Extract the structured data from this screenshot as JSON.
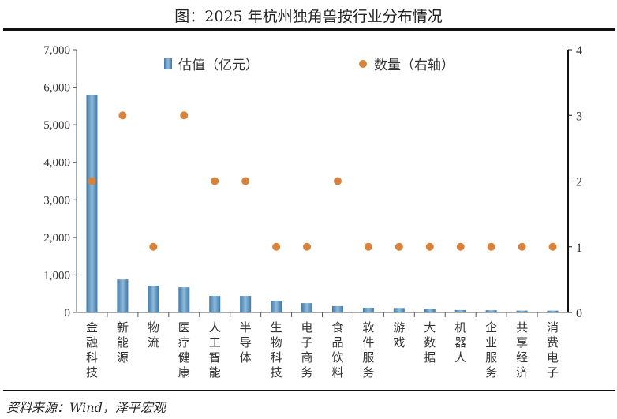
{
  "chart_data": {
    "type": "bar",
    "title": "图：2025 年杭州独角兽按行业分布情况",
    "categories": [
      "金融科技",
      "新能源",
      "物流",
      "医疗健康",
      "人工智能",
      "半导体",
      "生物科技",
      "电子商务",
      "食品饮料",
      "软件服务",
      "游戏",
      "大数据",
      "机器人",
      "企业服务",
      "共享经济",
      "消费电子"
    ],
    "series": [
      {
        "name": "估值（亿元）",
        "type": "bar",
        "axis": "left",
        "color": "#5b93bf",
        "values": [
          5800,
          880,
          715,
          670,
          440,
          440,
          315,
          250,
          170,
          125,
          120,
          100,
          65,
          60,
          50,
          50
        ]
      },
      {
        "name": "数量（右轴）",
        "type": "scatter",
        "axis": "right",
        "color": "#d9823b",
        "values": [
          2,
          3,
          1,
          3,
          2,
          2,
          1,
          1,
          2,
          1,
          1,
          1,
          1,
          1,
          1,
          1
        ]
      }
    ],
    "ylim": [
      0,
      7000
    ],
    "y_ticks": [
      "0",
      "1,000",
      "2,000",
      "3,000",
      "4,000",
      "5,000",
      "6,000",
      "7,000"
    ],
    "y2lim": [
      0,
      4
    ],
    "y2_ticks": [
      "0",
      "1",
      "2",
      "3",
      "4"
    ],
    "legend_placement": "top-center",
    "grid": false
  },
  "source": "资料来源：Wind，泽平宏观"
}
